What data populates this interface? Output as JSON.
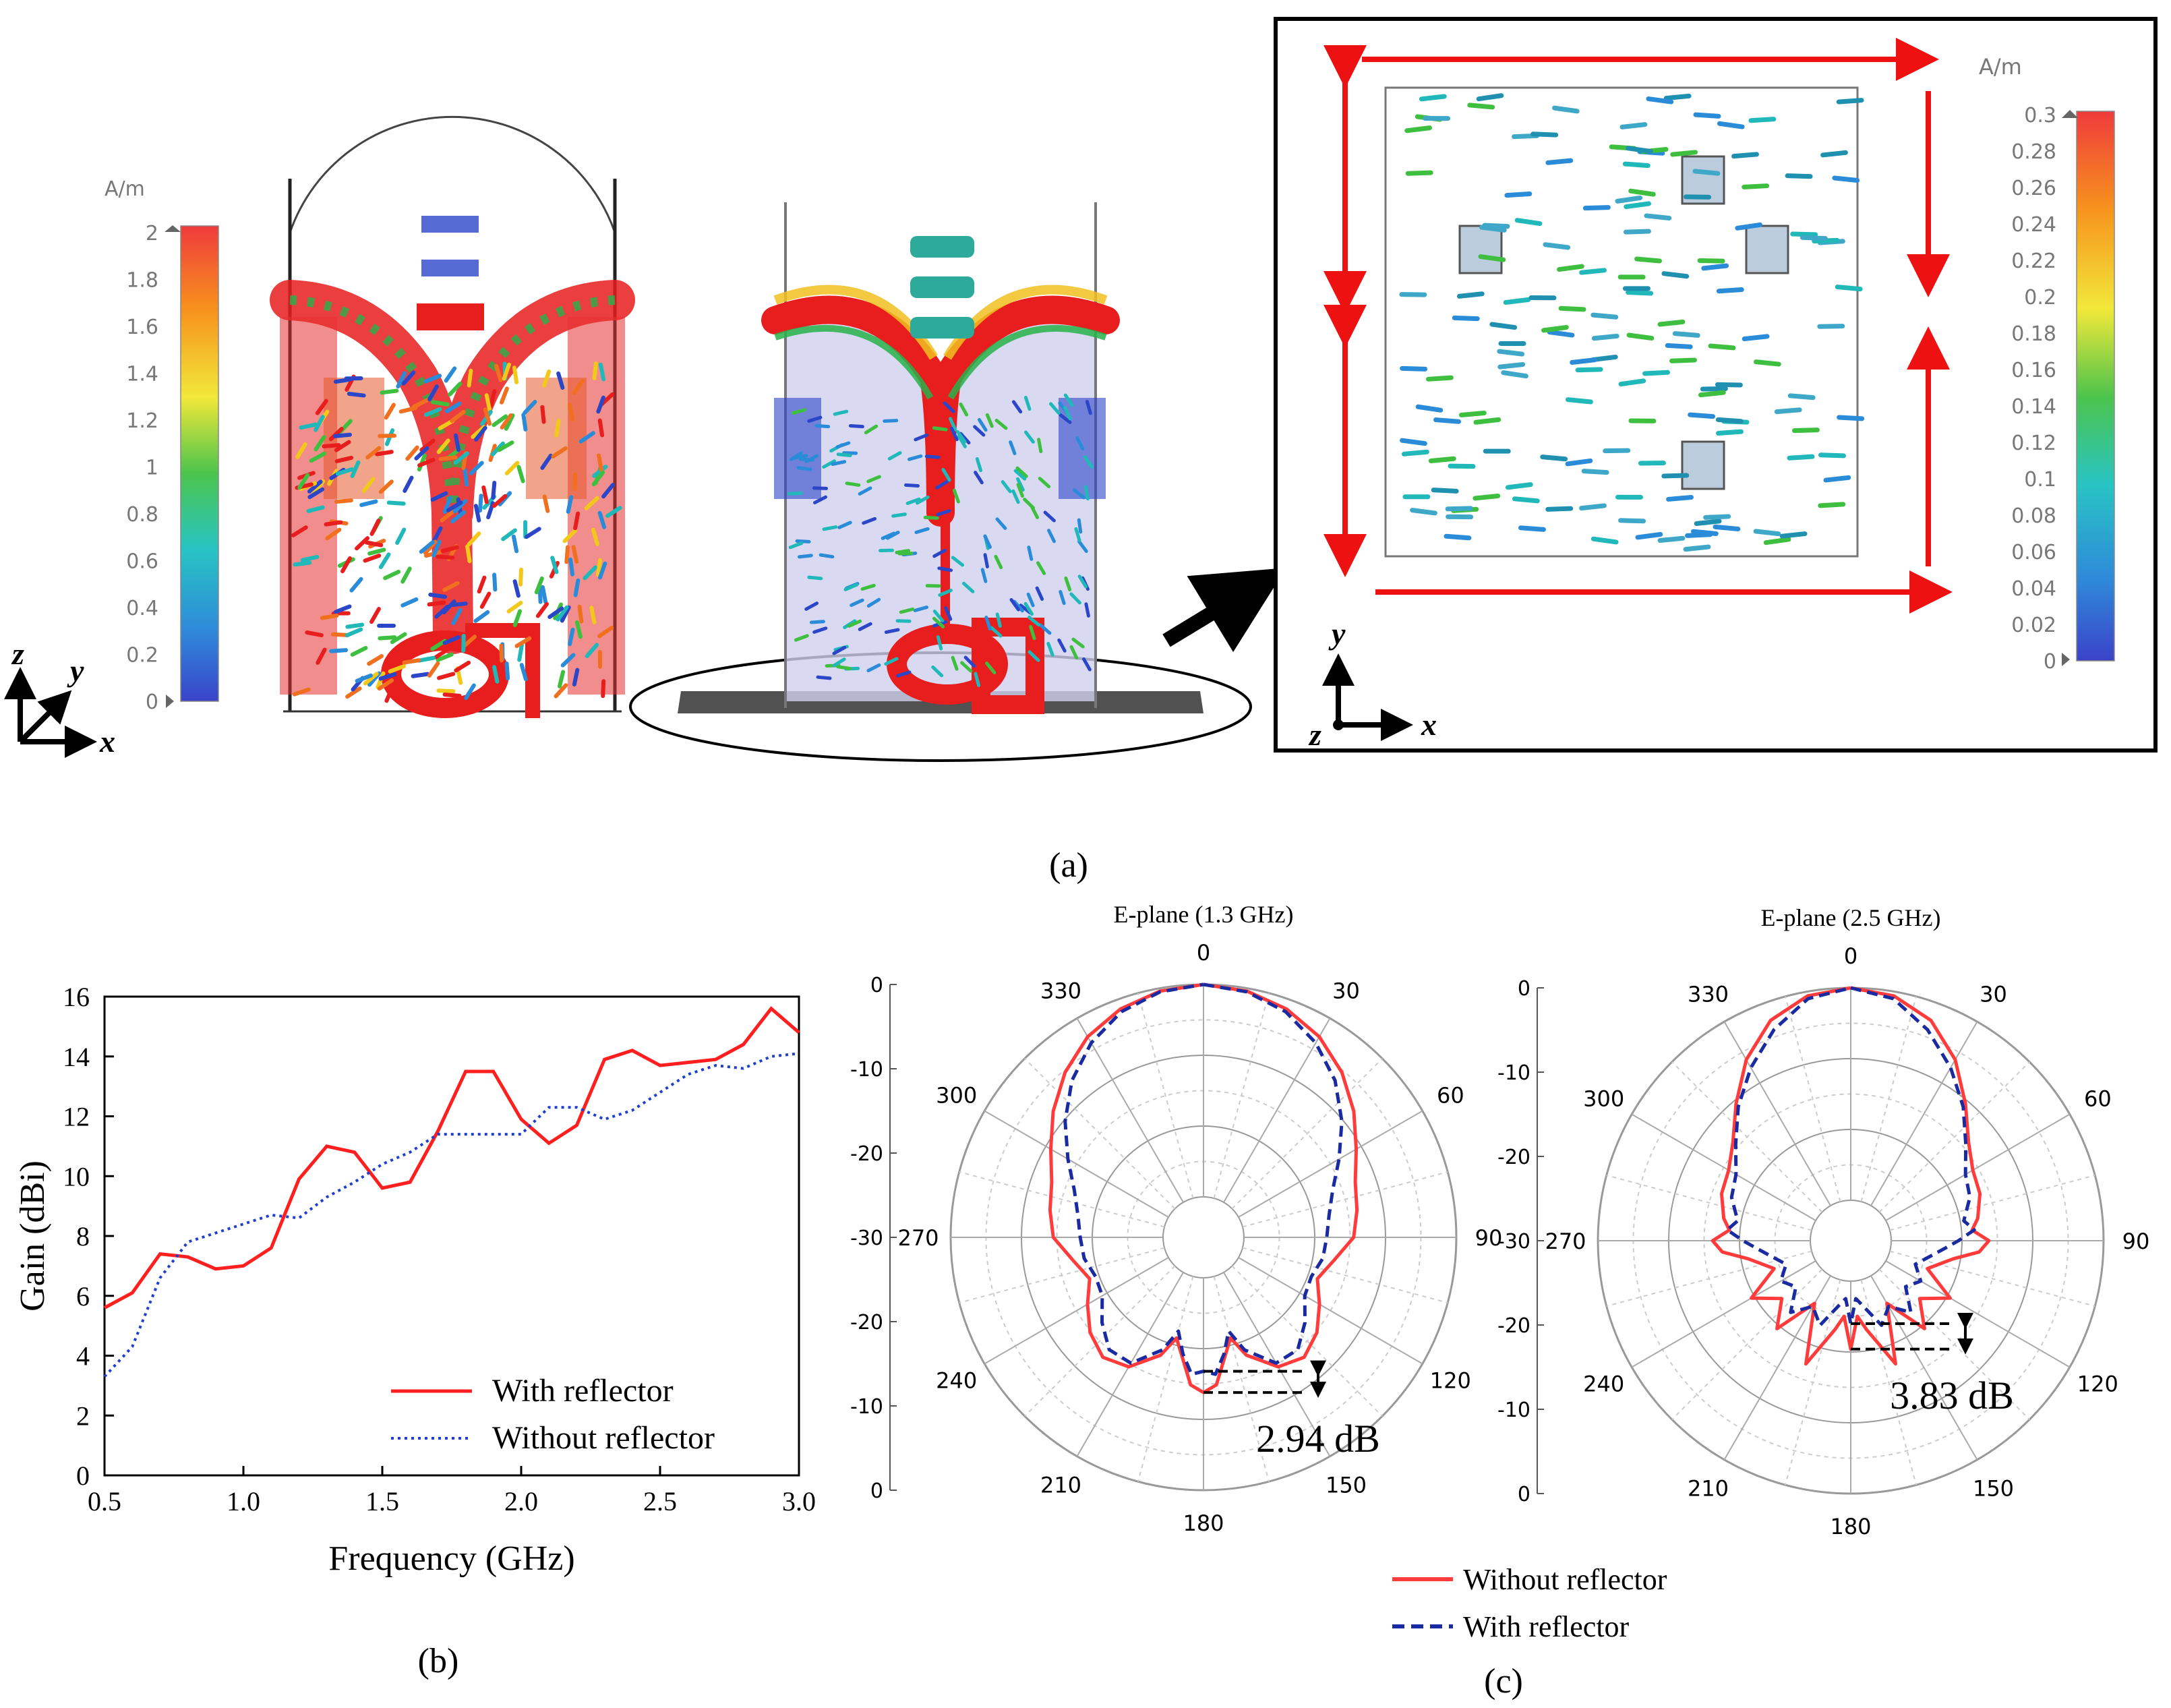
{
  "panel_labels": {
    "a": "(a)",
    "b": "(b)",
    "c": "(c)"
  },
  "colorbar_left": {
    "unit": "A/m",
    "ticks": [
      "2",
      "1.8",
      "1.6",
      "1.4",
      "1.2",
      "1",
      "0.8",
      "0.6",
      "0.4",
      "0.2",
      "0"
    ]
  },
  "colorbar_right": {
    "unit": "A/m",
    "ticks": [
      "0.3",
      "0.28",
      "0.26",
      "0.24",
      "0.22",
      "0.2",
      "0.18",
      "0.16",
      "0.14",
      "0.12",
      "0.1",
      "0.08",
      "0.06",
      "0.04",
      "0.02",
      "0"
    ]
  },
  "axes_labels": {
    "x": "x",
    "y": "y",
    "z": "z"
  },
  "colors": {
    "with_reflector_gain": "#ff1f1f",
    "without_reflector_gain": "#1f3fd0",
    "without_reflector_polar": "#ff3b3b",
    "with_reflector_polar": "#1a2aa0",
    "current_arrow": "#ee1111",
    "annotation_arrow": "#000000"
  },
  "chart_data": [
    {
      "type": "line",
      "id": "gain-vs-frequency",
      "xlabel": "Frequency (GHz)",
      "ylabel": "Gain (dBi)",
      "xlim": [
        0.5,
        3.0
      ],
      "ylim": [
        0,
        16
      ],
      "xticks": [
        0.5,
        1.0,
        1.5,
        2.0,
        2.5,
        3.0
      ],
      "xtick_labels": [
        "0.5",
        "1.0",
        "1.5",
        "2.0",
        "2.5",
        "3.0"
      ],
      "yticks": [
        0,
        2,
        4,
        6,
        8,
        10,
        12,
        14,
        16
      ],
      "ytick_labels": [
        "0",
        "2",
        "4",
        "6",
        "8",
        "10",
        "12",
        "14",
        "16"
      ],
      "legend": "bottom-right",
      "series": [
        {
          "name": "With reflector",
          "style": "solid",
          "x": [
            0.5,
            0.6,
            0.7,
            0.8,
            0.9,
            1.0,
            1.1,
            1.2,
            1.3,
            1.4,
            1.5,
            1.6,
            1.7,
            1.8,
            1.9,
            2.0,
            2.1,
            2.2,
            2.3,
            2.4,
            2.5,
            2.6,
            2.7,
            2.8,
            2.9,
            3.0
          ],
          "y": [
            5.6,
            6.1,
            7.4,
            7.3,
            6.9,
            7.0,
            7.6,
            9.9,
            11.0,
            10.8,
            9.6,
            9.8,
            11.5,
            13.5,
            13.5,
            11.9,
            11.1,
            11.7,
            13.9,
            14.2,
            13.7,
            13.8,
            13.9,
            14.4,
            15.6,
            14.8
          ]
        },
        {
          "name": "Without reflector",
          "style": "dotted",
          "x": [
            0.5,
            0.6,
            0.7,
            0.8,
            0.9,
            1.0,
            1.1,
            1.2,
            1.3,
            1.4,
            1.5,
            1.6,
            1.7,
            1.8,
            1.9,
            2.0,
            2.1,
            2.2,
            2.3,
            2.4,
            2.5,
            2.6,
            2.7,
            2.8,
            2.9,
            3.0
          ],
          "y": [
            3.3,
            4.3,
            6.6,
            7.8,
            8.1,
            8.4,
            8.7,
            8.6,
            9.3,
            9.8,
            10.4,
            10.8,
            11.4,
            11.4,
            11.4,
            11.4,
            12.3,
            12.3,
            11.9,
            12.2,
            12.8,
            13.4,
            13.7,
            13.6,
            14.0,
            14.1
          ]
        }
      ]
    },
    {
      "type": "polar",
      "id": "e-plane-1.3",
      "title": "E-plane (1.3 GHz)",
      "r_range": [
        -30,
        0
      ],
      "radial_ticks": [
        0,
        -10,
        -20,
        -30,
        -20,
        -10,
        0
      ],
      "radial_tick_labels": [
        "0",
        "-10",
        "-20",
        "-30",
        "-20",
        "-10",
        "0"
      ],
      "angle_labels": [
        "0",
        "30",
        "60",
        "90",
        "120",
        "150",
        "180",
        "210",
        "240",
        "270",
        "300",
        "330"
      ],
      "annotation": "2.94 dB",
      "series": [
        {
          "name": "Without reflector",
          "style": "solid",
          "theta": [
            0,
            10,
            20,
            30,
            40,
            50,
            60,
            70,
            80,
            90,
            100,
            110,
            120,
            130,
            140,
            150,
            160,
            165,
            170,
            175,
            180
          ],
          "r": [
            0,
            -0.4,
            -1.4,
            -3.0,
            -5.3,
            -8.0,
            -10.8,
            -12.9,
            -13.7,
            -14.5,
            -17.0,
            -18.6,
            -16.8,
            -14.8,
            -13.6,
            -14.6,
            -18.0,
            -21.0,
            -18.5,
            -14.8,
            -13.8
          ]
        },
        {
          "name": "With reflector",
          "style": "dashed",
          "theta": [
            0,
            10,
            20,
            30,
            40,
            50,
            60,
            70,
            80,
            90,
            100,
            110,
            120,
            130,
            140,
            150,
            160,
            165,
            170,
            175,
            180
          ],
          "r": [
            0,
            -0.5,
            -1.8,
            -4.0,
            -6.8,
            -10.2,
            -13.6,
            -16.3,
            -17.7,
            -18.3,
            -18.6,
            -19.5,
            -19.2,
            -17.0,
            -15.0,
            -15.2,
            -18.8,
            -22.0,
            -19.0,
            -16.3,
            -16.8
          ]
        }
      ]
    },
    {
      "type": "polar",
      "id": "e-plane-2.5",
      "title": "E-plane (2.5 GHz)",
      "r_range": [
        -30,
        0
      ],
      "radial_ticks": [
        0,
        -10,
        -20,
        -30,
        -20,
        -10,
        0
      ],
      "radial_tick_labels": [
        "0",
        "-10",
        "-20",
        "-30",
        "-20",
        "-10",
        "0"
      ],
      "angle_labels": [
        "0",
        "30",
        "60",
        "90",
        "120",
        "150",
        "180",
        "210",
        "240",
        "270",
        "300",
        "330"
      ],
      "annotation": "3.83 dB",
      "series": [
        {
          "name": "Without reflector",
          "style": "solid",
          "theta": [
            0,
            10,
            20,
            30,
            40,
            50,
            60,
            70,
            80,
            85,
            90,
            95,
            100,
            110,
            120,
            130,
            140,
            150,
            160,
            170,
            175,
            180
          ],
          "r": [
            0,
            -0.6,
            -2.6,
            -6.2,
            -10.5,
            -14.0,
            -15.8,
            -16.3,
            -17.5,
            -18.5,
            -16.2,
            -17.5,
            -21.0,
            -24.2,
            -19.5,
            -23.0,
            -19.5,
            -25.5,
            -17.2,
            -23.0,
            -25.0,
            -20.4
          ]
        },
        {
          "name": "With reflector",
          "style": "dashed",
          "theta": [
            0,
            10,
            20,
            30,
            40,
            50,
            60,
            70,
            80,
            85,
            90,
            95,
            100,
            110,
            120,
            130,
            140,
            150,
            160,
            170,
            175,
            180
          ],
          "r": [
            0,
            -1.0,
            -4.0,
            -7.5,
            -11.0,
            -14.5,
            -17.0,
            -17.8,
            -19.5,
            -18.2,
            -20.5,
            -22.5,
            -24.0,
            -26.0,
            -24.3,
            -25.6,
            -22.5,
            -25.0,
            -23.0,
            -26.5,
            -27.5,
            -24.0
          ]
        }
      ]
    }
  ]
}
